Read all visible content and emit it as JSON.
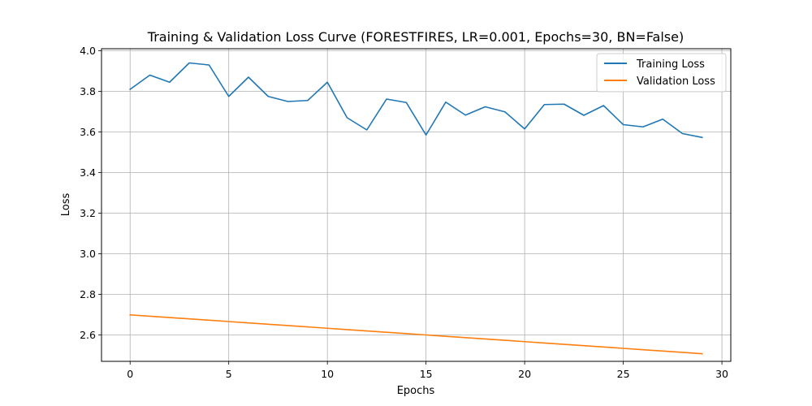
{
  "chart_data": {
    "type": "line",
    "title": "Training & Validation Loss Curve (FORESTFIRES, LR=0.001, Epochs=30, BN=False)",
    "xlabel": "Epochs",
    "ylabel": "Loss",
    "xlim": [
      -1.45,
      30.45
    ],
    "ylim": [
      2.47,
      4.01
    ],
    "x_ticks": [
      0,
      5,
      10,
      15,
      20,
      25,
      30
    ],
    "y_ticks": [
      2.6,
      2.8,
      3.0,
      3.2,
      3.4,
      3.6,
      3.8,
      4.0
    ],
    "x_tick_labels": [
      "0",
      "5",
      "10",
      "15",
      "20",
      "25",
      "30"
    ],
    "y_tick_labels": [
      "2.6",
      "2.8",
      "3.0",
      "3.2",
      "3.4",
      "3.6",
      "3.8",
      "4.0"
    ],
    "grid": true,
    "legend_position": "top-right",
    "x": [
      0,
      1,
      2,
      3,
      4,
      5,
      6,
      7,
      8,
      9,
      10,
      11,
      12,
      13,
      14,
      15,
      16,
      17,
      18,
      19,
      20,
      21,
      22,
      23,
      24,
      25,
      26,
      27,
      28,
      29
    ],
    "series": [
      {
        "name": "Training Loss",
        "color": "#1f77b4",
        "values": [
          3.81,
          3.88,
          3.845,
          3.94,
          3.93,
          3.775,
          3.87,
          3.775,
          3.75,
          3.755,
          3.845,
          3.67,
          3.61,
          3.762,
          3.745,
          3.585,
          3.747,
          3.683,
          3.724,
          3.699,
          3.615,
          3.735,
          3.737,
          3.682,
          3.73,
          3.636,
          3.625,
          3.663,
          3.592,
          3.573
        ]
      },
      {
        "name": "Validation Loss",
        "color": "#ff7f0e",
        "values": [
          2.699,
          2.6924,
          2.6858,
          2.6792,
          2.6726,
          2.666,
          2.6594,
          2.6528,
          2.6462,
          2.6396,
          2.633,
          2.6264,
          2.6198,
          2.6132,
          2.6066,
          2.6,
          2.5934,
          2.5868,
          2.5802,
          2.5736,
          2.567,
          2.5604,
          2.5538,
          2.5472,
          2.5406,
          2.534,
          2.5274,
          2.5208,
          2.5142,
          2.5076
        ]
      }
    ]
  }
}
